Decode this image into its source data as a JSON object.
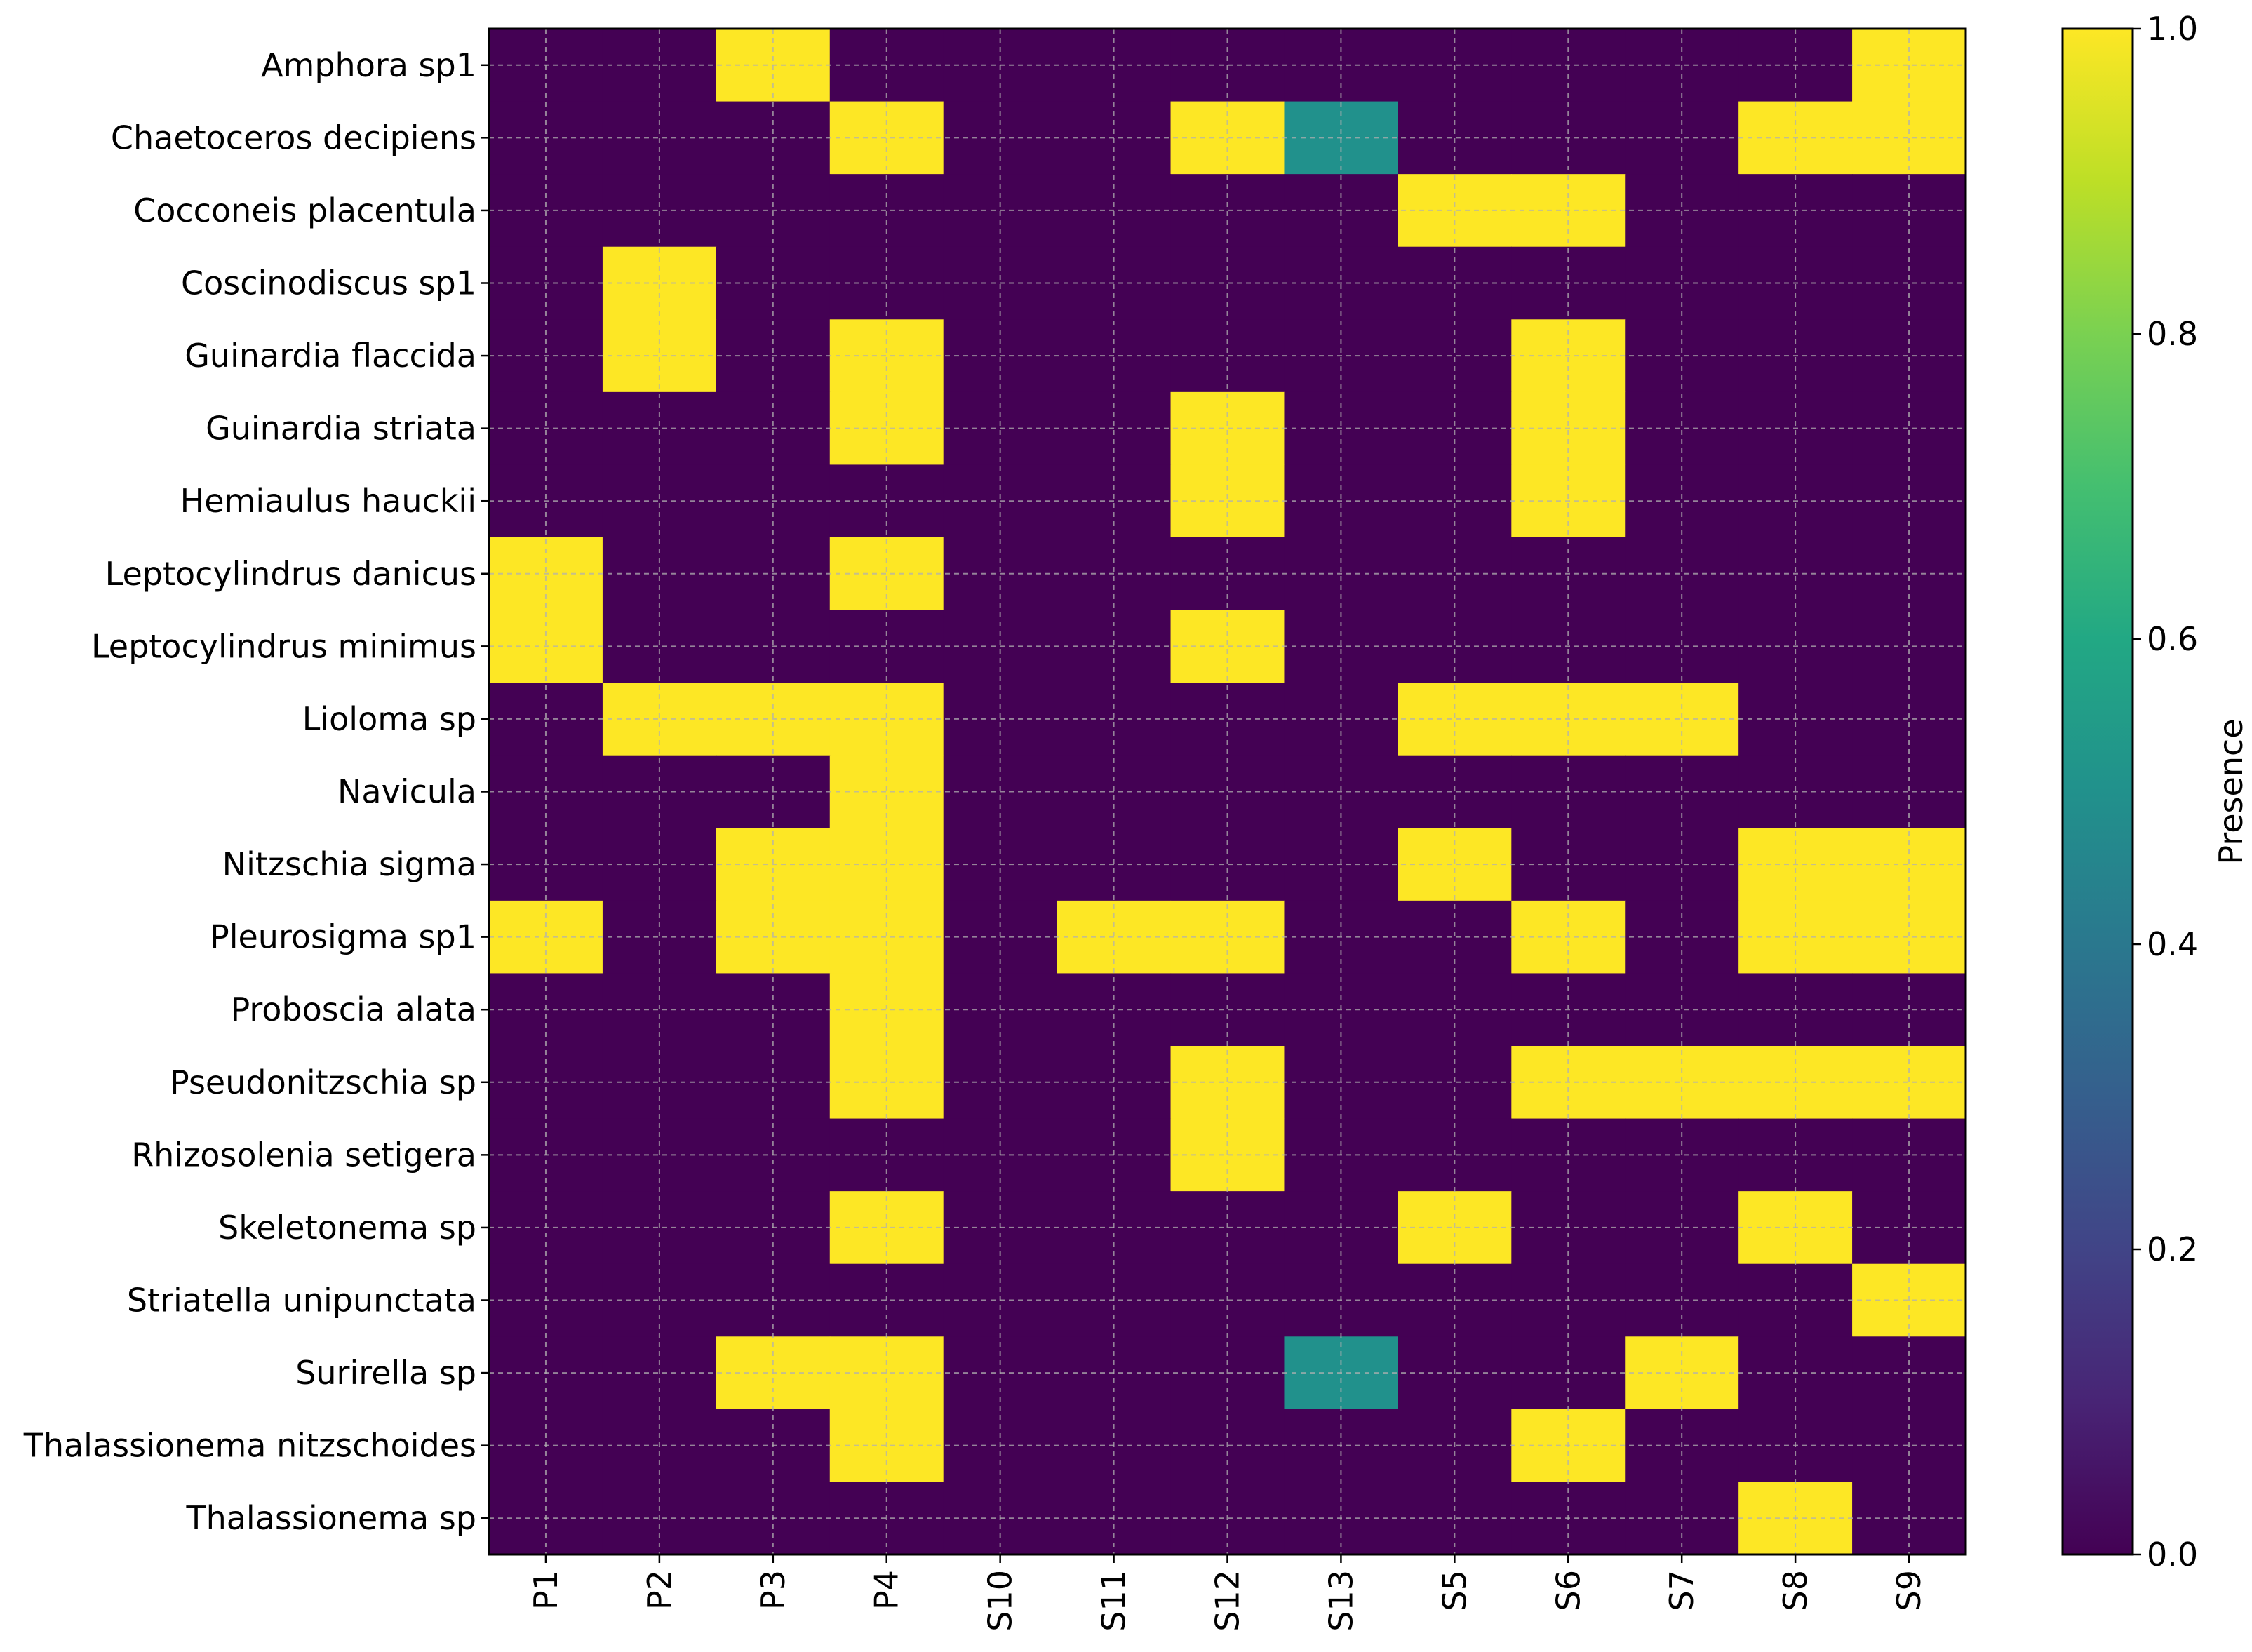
{
  "chart_data": {
    "type": "heatmap",
    "title": "",
    "xlabel": "",
    "ylabel": "",
    "x_categories": [
      "P1",
      "P2",
      "P3",
      "P4",
      "S10",
      "S11",
      "S12",
      "S13",
      "S5",
      "S6",
      "S7",
      "S8",
      "S9"
    ],
    "y_categories": [
      "Amphora sp1",
      "Chaetoceros decipiens",
      "Cocconeis placentula",
      "Coscinodiscus sp1",
      "Guinardia flaccida",
      "Guinardia striata",
      "Hemiaulus hauckii",
      "Leptocylindrus danicus",
      "Leptocylindrus minimus",
      "Lioloma sp",
      "Navicula",
      "Nitzschia sigma",
      "Pleurosigma sp1",
      "Proboscia alata",
      "Pseudonitzschia sp",
      "Rhizosolenia setigera",
      "Skeletonema sp",
      "Striatella unipunctata",
      "Surirella sp",
      "Thalassionema nitzschoides",
      "Thalassionema sp"
    ],
    "values": [
      [
        0,
        0,
        1,
        0,
        0,
        0,
        0,
        0,
        0,
        0,
        0,
        0,
        1
      ],
      [
        0,
        0,
        0,
        1,
        0,
        0,
        1,
        0.5,
        0,
        0,
        0,
        1,
        1
      ],
      [
        0,
        0,
        0,
        0,
        0,
        0,
        0,
        0,
        1,
        1,
        0,
        0,
        0
      ],
      [
        0,
        1,
        0,
        0,
        0,
        0,
        0,
        0,
        0,
        0,
        0,
        0,
        0
      ],
      [
        0,
        1,
        0,
        1,
        0,
        0,
        0,
        0,
        0,
        1,
        0,
        0,
        0
      ],
      [
        0,
        0,
        0,
        1,
        0,
        0,
        1,
        0,
        0,
        1,
        0,
        0,
        0
      ],
      [
        0,
        0,
        0,
        0,
        0,
        0,
        1,
        0,
        0,
        1,
        0,
        0,
        0
      ],
      [
        1,
        0,
        0,
        1,
        0,
        0,
        0,
        0,
        0,
        0,
        0,
        0,
        0
      ],
      [
        1,
        0,
        0,
        0,
        0,
        0,
        1,
        0,
        0,
        0,
        0,
        0,
        0
      ],
      [
        0,
        1,
        1,
        1,
        0,
        0,
        0,
        0,
        1,
        1,
        1,
        0,
        0
      ],
      [
        0,
        0,
        0,
        1,
        0,
        0,
        0,
        0,
        0,
        0,
        0,
        0,
        0
      ],
      [
        0,
        0,
        1,
        1,
        0,
        0,
        0,
        0,
        1,
        0,
        0,
        1,
        1
      ],
      [
        1,
        0,
        1,
        1,
        0,
        1,
        1,
        0,
        0,
        1,
        0,
        1,
        1
      ],
      [
        0,
        0,
        0,
        1,
        0,
        0,
        0,
        0,
        0,
        0,
        0,
        0,
        0
      ],
      [
        0,
        0,
        0,
        1,
        0,
        0,
        1,
        0,
        0,
        1,
        1,
        1,
        1
      ],
      [
        0,
        0,
        0,
        0,
        0,
        0,
        1,
        0,
        0,
        0,
        0,
        0,
        0
      ],
      [
        0,
        0,
        0,
        1,
        0,
        0,
        0,
        0,
        1,
        0,
        0,
        1,
        0
      ],
      [
        0,
        0,
        0,
        0,
        0,
        0,
        0,
        0,
        0,
        0,
        0,
        0,
        1
      ],
      [
        0,
        0,
        1,
        1,
        0,
        0,
        0,
        0.5,
        0,
        0,
        1,
        0,
        0
      ],
      [
        0,
        0,
        0,
        1,
        0,
        0,
        0,
        0,
        0,
        1,
        0,
        0,
        0
      ],
      [
        0,
        0,
        0,
        0,
        0,
        0,
        0,
        0,
        0,
        0,
        0,
        1,
        0
      ]
    ],
    "colormap": "viridis",
    "colors": {
      "low": "#440154",
      "mid": "#21918c",
      "high": "#fde725"
    },
    "colorbar": {
      "label": "Presence",
      "range": [
        0.0,
        1.0
      ],
      "ticks": [
        "0.0",
        "0.2",
        "0.4",
        "0.6",
        "0.8",
        "1.0"
      ]
    },
    "grid": true,
    "legend": "colorbar-right"
  }
}
